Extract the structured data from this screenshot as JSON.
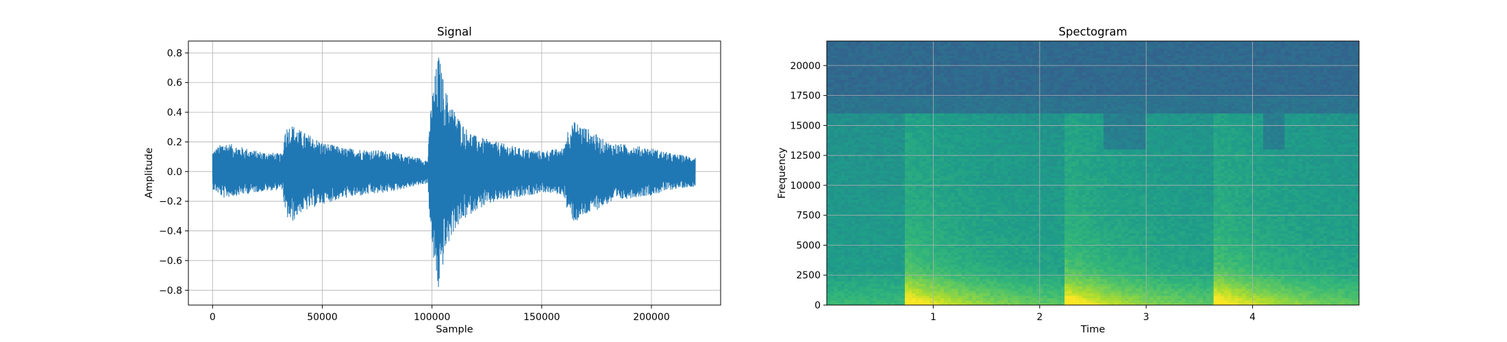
{
  "chart_data": [
    {
      "type": "line",
      "title": "Signal",
      "xlabel": "Sample",
      "ylabel": "Amplitude",
      "xlim": [
        -11025,
        231525
      ],
      "ylim": [
        -0.9,
        0.88
      ],
      "xticks": [
        0,
        50000,
        100000,
        150000,
        200000
      ],
      "xtick_labels": [
        "0",
        "50000",
        "100000",
        "150000",
        "200000"
      ],
      "yticks": [
        -0.8,
        -0.6,
        -0.4,
        -0.2,
        0.0,
        0.2,
        0.4,
        0.6,
        0.8
      ],
      "ytick_labels": [
        "−0.8",
        "−0.6",
        "−0.4",
        "−0.2",
        "0.0",
        "0.2",
        "0.4",
        "0.6",
        "0.8"
      ],
      "grid": true,
      "color": "#1f77b4",
      "series": [
        {
          "x": [
            0,
            5000,
            20000,
            32000,
            33000,
            36000,
            40000,
            50000,
            60000,
            80000,
            98000,
            99500,
            101000,
            103000,
            104000,
            106000,
            110000,
            115000,
            120000,
            130000,
            140000,
            150000,
            160000,
            161500,
            165000,
            170000,
            180000,
            190000,
            200000,
            210000,
            220000
          ],
          "envelope_max": [
            0.14,
            0.2,
            0.14,
            0.12,
            0.3,
            0.32,
            0.28,
            0.2,
            0.16,
            0.14,
            0.08,
            0.45,
            0.62,
            0.8,
            0.72,
            0.56,
            0.42,
            0.3,
            0.24,
            0.2,
            0.16,
            0.14,
            0.16,
            0.28,
            0.34,
            0.3,
            0.2,
            0.18,
            0.16,
            0.12,
            0.1
          ],
          "envelope_min": [
            -0.12,
            -0.18,
            -0.14,
            -0.12,
            -0.3,
            -0.35,
            -0.28,
            -0.22,
            -0.18,
            -0.14,
            -0.08,
            -0.45,
            -0.65,
            -0.82,
            -0.72,
            -0.55,
            -0.4,
            -0.32,
            -0.26,
            -0.2,
            -0.18,
            -0.14,
            -0.16,
            -0.26,
            -0.35,
            -0.3,
            -0.22,
            -0.18,
            -0.16,
            -0.12,
            -0.1
          ]
        }
      ]
    },
    {
      "type": "heatmap",
      "title": "Spectogram",
      "xlabel": "Time",
      "ylabel": "Frequency",
      "xlim": [
        0,
        5.0
      ],
      "ylim": [
        0,
        22050
      ],
      "xticks": [
        1,
        2,
        3,
        4
      ],
      "xtick_labels": [
        "1",
        "2",
        "3",
        "4"
      ],
      "yticks": [
        0,
        2500,
        5000,
        7500,
        10000,
        12500,
        15000,
        17500,
        20000
      ],
      "ytick_labels": [
        "0",
        "2500",
        "5000",
        "7500",
        "10000",
        "12500",
        "15000",
        "17500",
        "20000"
      ],
      "grid": true,
      "colormap": "viridis",
      "onsets": [
        0.75,
        2.25,
        3.65
      ],
      "low_energy_regions": [
        [
          2.6,
          3.0
        ],
        [
          4.1,
          4.3
        ]
      ]
    }
  ]
}
